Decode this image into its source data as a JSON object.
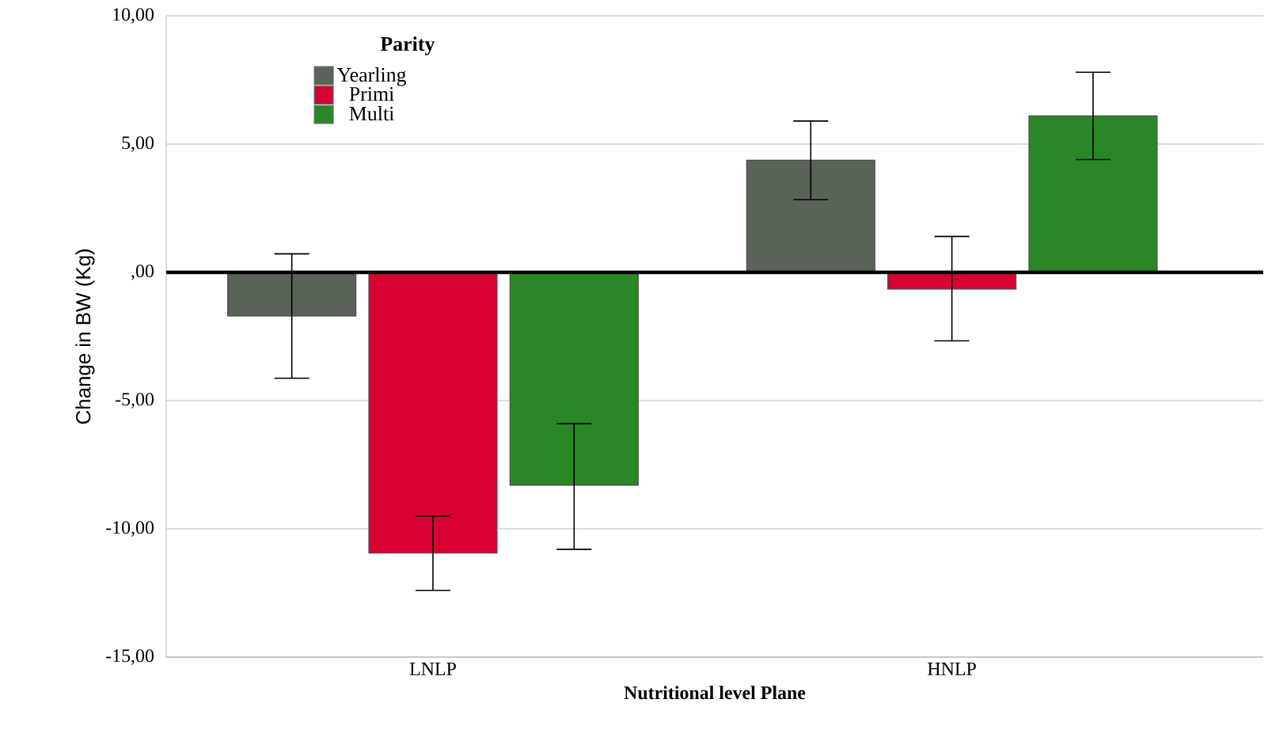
{
  "chart_data": {
    "type": "bar",
    "xlabel": "Nutritional level Plane",
    "ylabel": "Change in BW (Kg)",
    "legend_title": "Parity",
    "categories": [
      "LNLP",
      "HNLP"
    ],
    "series": [
      {
        "name": "Yearling",
        "color": "#5a6358",
        "values": [
          -1.7,
          4.37
        ],
        "errors": [
          [
            -4.13,
            0.72
          ],
          [
            2.83,
            5.9
          ]
        ]
      },
      {
        "name": "Primi",
        "color": "#d60032",
        "values": [
          -10.95,
          -0.65
        ],
        "errors": [
          [
            -12.4,
            -9.5
          ],
          [
            -2.67,
            1.4
          ]
        ]
      },
      {
        "name": "Multi",
        "color": "#2a8728",
        "values": [
          -8.3,
          6.1
        ],
        "errors": [
          [
            -10.8,
            -5.9
          ],
          [
            4.4,
            7.8
          ]
        ]
      }
    ],
    "ylim": [
      -15,
      10
    ],
    "yticks": [
      {
        "value": -15,
        "label": "-15,00"
      },
      {
        "value": -10,
        "label": "-10,00"
      },
      {
        "value": -5,
        "label": "-5,00"
      },
      {
        "value": 0,
        "label": ",00"
      },
      {
        "value": 5,
        "label": "5,00"
      },
      {
        "value": 10,
        "label": "10,00"
      }
    ],
    "ref_lines": [
      {
        "axis": "y",
        "value": 0,
        "color": "#000000"
      }
    ],
    "grid": "y",
    "legend": "top left"
  }
}
